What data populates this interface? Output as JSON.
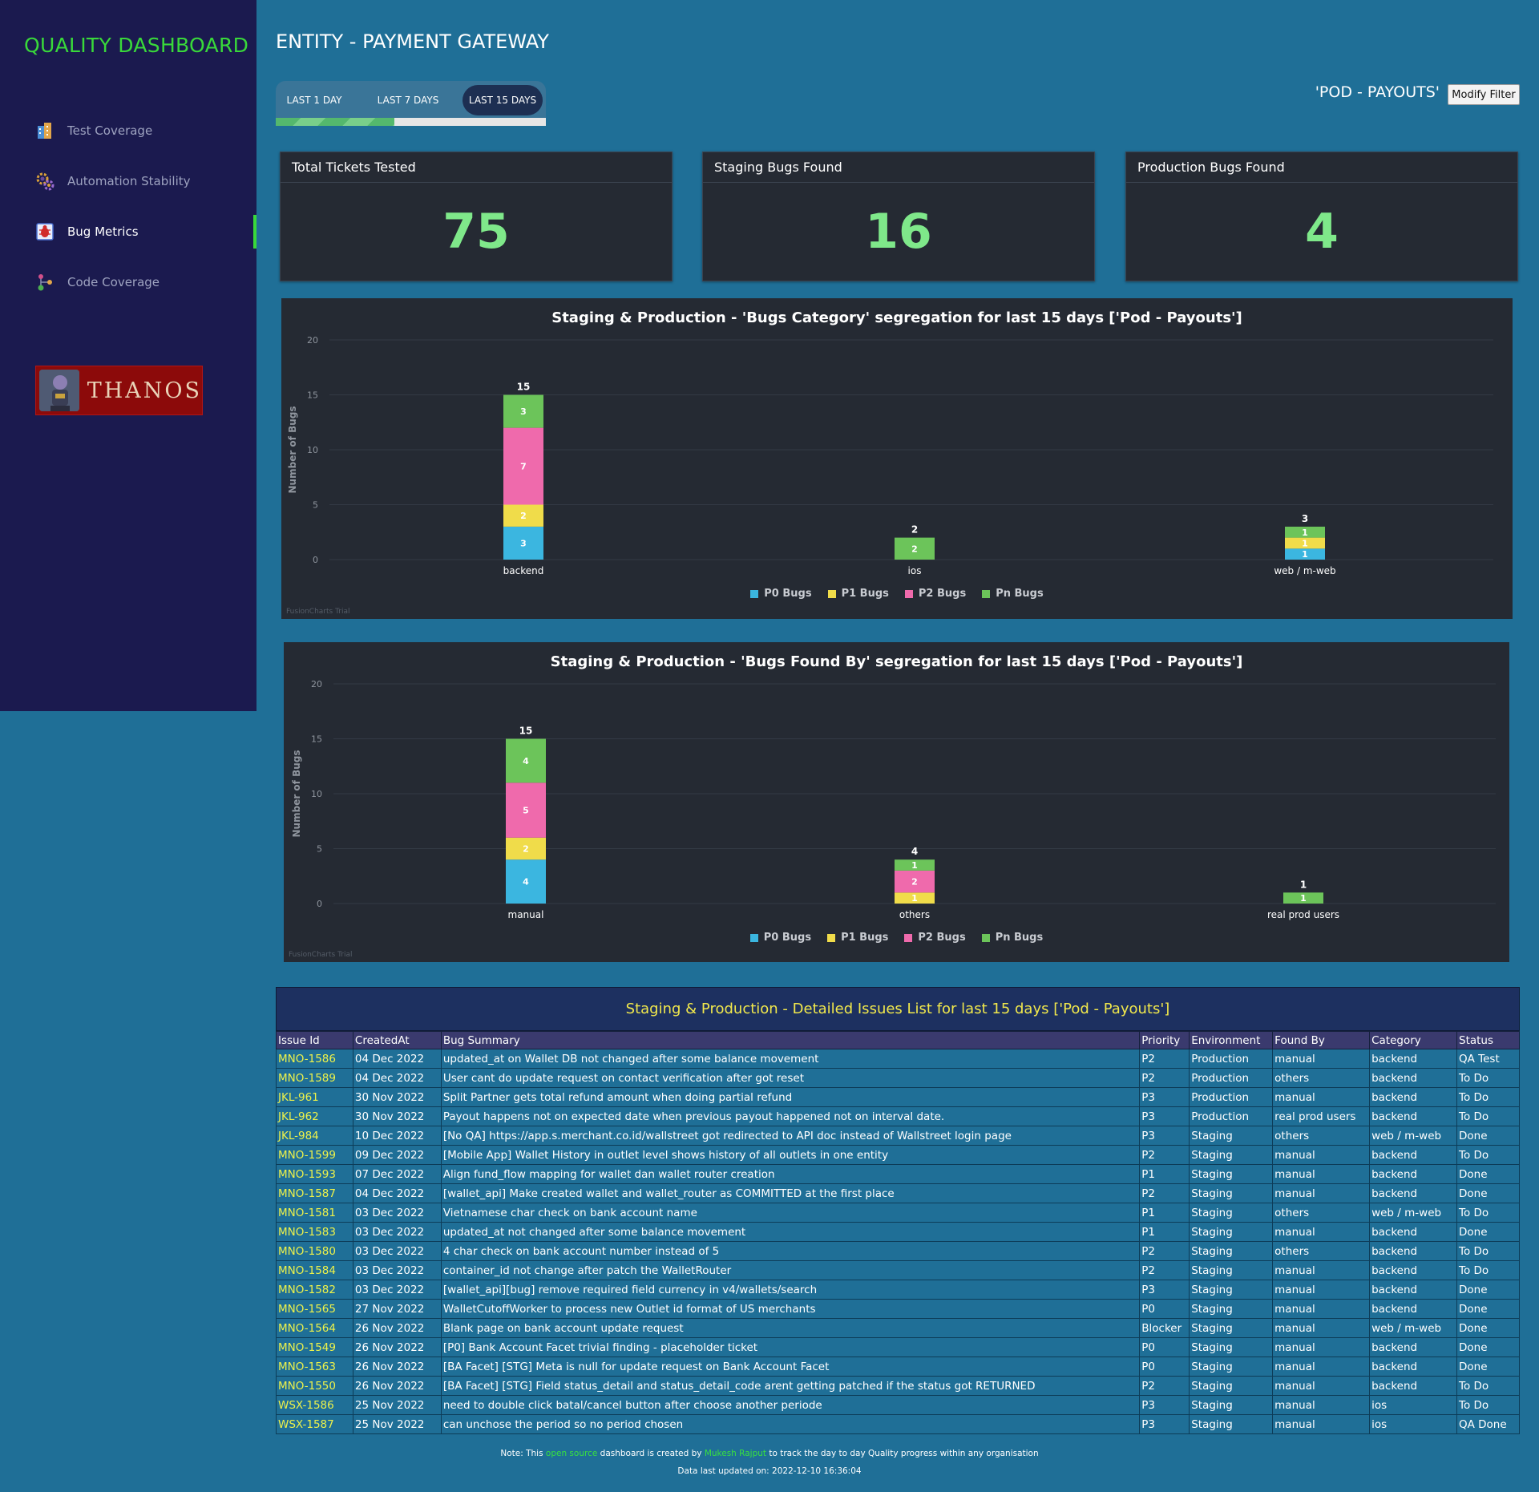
{
  "app": {
    "brand": "QUALITY DASHBOARD"
  },
  "sidebar": {
    "items": [
      {
        "label": "Test Coverage",
        "icon": "building-icon"
      },
      {
        "label": "Automation Stability",
        "icon": "gears-icon"
      },
      {
        "label": "Bug Metrics",
        "icon": "bug-icon",
        "active": true
      },
      {
        "label": "Code Coverage",
        "icon": "molecule-icon"
      }
    ],
    "logo_text": "THANOS"
  },
  "header": {
    "title": "ENTITY - PAYMENT GATEWAY",
    "filter_label": "'POD - PAYOUTS'",
    "filter_button": "Modify Filter"
  },
  "tabs": [
    {
      "label": "LAST 1 DAY"
    },
    {
      "label": "LAST 7 DAYS"
    },
    {
      "label": "LAST 15 DAYS",
      "active": true
    }
  ],
  "tab_progress": 0.44,
  "kpis": [
    {
      "title": "Total Tickets Tested",
      "value": "75"
    },
    {
      "title": "Staging Bugs Found",
      "value": "16"
    },
    {
      "title": "Production Bugs Found",
      "value": "4"
    }
  ],
  "colors": {
    "p0": "#3bb6e0",
    "p1": "#f0dc4a",
    "p2": "#ef6aac",
    "pn": "#6cc45a",
    "kpi": "#7fe88a",
    "accent": "#39d93a"
  },
  "chart_data": [
    {
      "type": "bar",
      "stacked": true,
      "title": "Staging & Production - 'Bugs Category' segregation for last 15 days ['Pod - Payouts']",
      "xlabel": "",
      "ylabel": "Number of Bugs",
      "ylim": [
        0,
        20
      ],
      "yticks": [
        0,
        5,
        10,
        15,
        20
      ],
      "categories": [
        "backend",
        "ios",
        "web / m-web"
      ],
      "series": [
        {
          "name": "P0 Bugs",
          "values": [
            3,
            0,
            1
          ]
        },
        {
          "name": "P1 Bugs",
          "values": [
            2,
            0,
            1
          ]
        },
        {
          "name": "P2 Bugs",
          "values": [
            7,
            0,
            0
          ]
        },
        {
          "name": "Pn Bugs",
          "values": [
            3,
            2,
            1
          ]
        }
      ],
      "totals": [
        15,
        2,
        3
      ],
      "legend": "bottom-center",
      "grid": true,
      "watermark": "FusionCharts Trial"
    },
    {
      "type": "bar",
      "stacked": true,
      "title": "Staging & Production - 'Bugs Found By' segregation for last 15 days ['Pod - Payouts']",
      "xlabel": "",
      "ylabel": "Number of Bugs",
      "ylim": [
        0,
        20
      ],
      "yticks": [
        0,
        5,
        10,
        15,
        20
      ],
      "categories": [
        "manual",
        "others",
        "real prod users"
      ],
      "series": [
        {
          "name": "P0 Bugs",
          "values": [
            4,
            0,
            0
          ]
        },
        {
          "name": "P1 Bugs",
          "values": [
            2,
            1,
            0
          ]
        },
        {
          "name": "P2 Bugs",
          "values": [
            5,
            2,
            0
          ]
        },
        {
          "name": "Pn Bugs",
          "values": [
            4,
            1,
            1
          ]
        }
      ],
      "totals": [
        15,
        4,
        1
      ],
      "legend": "bottom-center",
      "grid": true,
      "watermark": "FusionCharts Trial"
    }
  ],
  "issues": {
    "title": "Staging & Production - Detailed Issues List for last 15 days ['Pod - Payouts']",
    "columns": [
      "Issue Id",
      "CreatedAt",
      "Bug Summary",
      "Priority",
      "Environment",
      "Found By",
      "Category",
      "Status"
    ],
    "rows": [
      [
        "MNO-1586",
        "04 Dec 2022",
        "updated_at on Wallet DB not changed after some balance movement",
        "P2",
        "Production",
        "manual",
        "backend",
        "QA Test"
      ],
      [
        "MNO-1589",
        "04 Dec 2022",
        "User cant do update request on contact verification after got reset",
        "P2",
        "Production",
        "others",
        "backend",
        "To Do"
      ],
      [
        "JKL-961",
        "30 Nov 2022",
        "Split Partner gets total refund amount when doing partial refund",
        "P3",
        "Production",
        "manual",
        "backend",
        "To Do"
      ],
      [
        "JKL-962",
        "30 Nov 2022",
        "Payout happens not on expected date when previous payout happened not on interval date.",
        "P3",
        "Production",
        "real prod users",
        "backend",
        "To Do"
      ],
      [
        "JKL-984",
        "10 Dec 2022",
        "[No QA] https://app.s.merchant.co.id/wallstreet got redirected to API doc instead of Wallstreet login page",
        "P3",
        "Staging",
        "others",
        "web / m-web",
        "Done"
      ],
      [
        "MNO-1599",
        "09 Dec 2022",
        "[Mobile App] Wallet History in outlet level shows history of all outlets in one entity",
        "P2",
        "Staging",
        "manual",
        "backend",
        "To Do"
      ],
      [
        "MNO-1593",
        "07 Dec 2022",
        "Align fund_flow mapping for wallet dan wallet router creation",
        "P1",
        "Staging",
        "manual",
        "backend",
        "Done"
      ],
      [
        "MNO-1587",
        "04 Dec 2022",
        "[wallet_api] Make created wallet and wallet_router as COMMITTED at the first place",
        "P2",
        "Staging",
        "manual",
        "backend",
        "Done"
      ],
      [
        "MNO-1581",
        "03 Dec 2022",
        "Vietnamese char check on bank account name",
        "P1",
        "Staging",
        "others",
        "web / m-web",
        "To Do"
      ],
      [
        "MNO-1583",
        "03 Dec 2022",
        "updated_at not changed after some balance movement",
        "P1",
        "Staging",
        "manual",
        "backend",
        "Done"
      ],
      [
        "MNO-1580",
        "03 Dec 2022",
        "4 char check on bank account number instead of 5",
        "P2",
        "Staging",
        "others",
        "backend",
        "To Do"
      ],
      [
        "MNO-1584",
        "03 Dec 2022",
        "container_id not change after patch the WalletRouter",
        "P2",
        "Staging",
        "manual",
        "backend",
        "To Do"
      ],
      [
        "MNO-1582",
        "03 Dec 2022",
        "[wallet_api][bug] remove required field currency in v4/wallets/search",
        "P3",
        "Staging",
        "manual",
        "backend",
        "Done"
      ],
      [
        "MNO-1565",
        "27 Nov 2022",
        "WalletCutoffWorker to process new Outlet id format of US merchants",
        "P0",
        "Staging",
        "manual",
        "backend",
        "Done"
      ],
      [
        "MNO-1564",
        "26 Nov 2022",
        "Blank page on bank account update request",
        "Blocker",
        "Staging",
        "manual",
        "web / m-web",
        "Done"
      ],
      [
        "MNO-1549",
        "26 Nov 2022",
        "[P0] Bank Account Facet trivial finding - placeholder ticket",
        "P0",
        "Staging",
        "manual",
        "backend",
        "Done"
      ],
      [
        "MNO-1563",
        "26 Nov 2022",
        "[BA Facet] [STG] Meta is null for update request on Bank Account Facet",
        "P0",
        "Staging",
        "manual",
        "backend",
        "Done"
      ],
      [
        "MNO-1550",
        "26 Nov 2022",
        "[BA Facet] [STG] Field status_detail and status_detail_code arent getting patched if the status got RETURNED",
        "P2",
        "Staging",
        "manual",
        "backend",
        "To Do"
      ],
      [
        "WSX-1586",
        "25 Nov 2022",
        "need to double click batal/cancel button after choose another periode",
        "P3",
        "Staging",
        "manual",
        "ios",
        "To Do"
      ],
      [
        "WSX-1587",
        "25 Nov 2022",
        "can unchose the period so no period chosen",
        "P3",
        "Staging",
        "manual",
        "ios",
        "QA Done"
      ]
    ]
  },
  "footer": {
    "note_prefix": "Note: This ",
    "note_link": "open source",
    "note_mid": " dashboard is created by ",
    "note_author": "Mukesh Rajput",
    "note_suffix": " to track the day to day Quality progress within any organisation",
    "updated": "Data last updated on: 2022-12-10 16:36:04"
  }
}
